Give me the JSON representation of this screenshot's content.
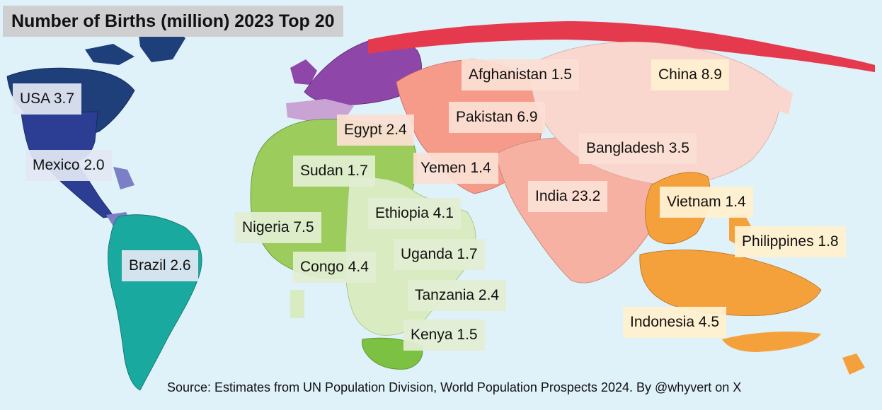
{
  "title": "Number of Births (million) 2023 Top 20",
  "source": "Source: Estimates from UN Population Division, World Population Prospects 2024. By @whyvert on X",
  "colors": {
    "ocean": "#dff1f9",
    "north_america": "#1f3f7a",
    "usa": "#2c3e94",
    "central_america": "#7d7fc6",
    "south_america": "#1aa99e",
    "europe": "#8e46a8",
    "europe_light": "#c9a3d4",
    "north_africa": "#9ccc5b",
    "east_africa": "#d9ebc1",
    "south_africa": "#7cc142",
    "middle_east": "#f69a8a",
    "south_asia": "#f6b1a3",
    "east_asia": "#f9d7cf",
    "russia": "#e5394d",
    "southeast_asia": "#f5a13b"
  },
  "countries": [
    {
      "name": "USA",
      "value": "3.7",
      "region": "am"
    },
    {
      "name": "Mexico",
      "value": "2.0",
      "region": "am"
    },
    {
      "name": "Brazil",
      "value": "2.6",
      "region": "am"
    },
    {
      "name": "Egypt",
      "value": "2.4",
      "region": "as"
    },
    {
      "name": "Sudan",
      "value": "1.7",
      "region": "af"
    },
    {
      "name": "Nigeria",
      "value": "7.5",
      "region": "af"
    },
    {
      "name": "Ethiopia",
      "value": "4.1",
      "region": "af"
    },
    {
      "name": "Congo",
      "value": "4.4",
      "region": "af"
    },
    {
      "name": "Uganda",
      "value": "1.7",
      "region": "af"
    },
    {
      "name": "Tanzania",
      "value": "2.4",
      "region": "af"
    },
    {
      "name": "Kenya",
      "value": "1.5",
      "region": "af"
    },
    {
      "name": "Afghanistan",
      "value": "1.5",
      "region": "as"
    },
    {
      "name": "Pakistan",
      "value": "6.9",
      "region": "as"
    },
    {
      "name": "Yemen",
      "value": "1.4",
      "region": "as"
    },
    {
      "name": "India",
      "value": "23.2",
      "region": "as"
    },
    {
      "name": "Bangladesh",
      "value": "3.5",
      "region": "as"
    },
    {
      "name": "China",
      "value": "8.9",
      "region": "ea"
    },
    {
      "name": "Vietnam",
      "value": "1.4",
      "region": "ea"
    },
    {
      "name": "Philippines",
      "value": "1.8",
      "region": "ea"
    },
    {
      "name": "Indonesia",
      "value": "4.5",
      "region": "ea"
    }
  ]
}
